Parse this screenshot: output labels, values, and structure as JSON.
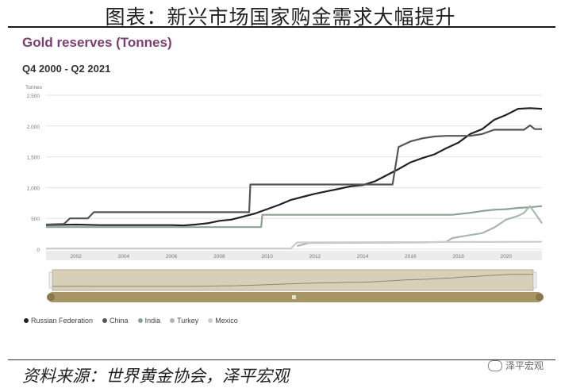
{
  "page_title": "图表：新兴市场国家购金需求大幅提升",
  "source_text": "资料来源：世界黄金协会，泽平宏观",
  "watermark_text": "泽平宏观",
  "chart_data": {
    "type": "line",
    "title": "Gold reserves (Tonnes)",
    "subtitle": "Q4 2000 - Q2 2021",
    "ylabel": "Tonnes",
    "xlabel": "",
    "ylim": [
      0,
      2500
    ],
    "xlim": [
      2000.75,
      2021.5
    ],
    "y_ticks": [
      0,
      500,
      1000,
      1500,
      2000,
      2500
    ],
    "y_tick_labels": [
      "0",
      "500",
      "1,000",
      "1,500",
      "2,000",
      "2,500"
    ],
    "x_ticks": [
      2002,
      2004,
      2006,
      2008,
      2010,
      2012,
      2014,
      2016,
      2018,
      2020
    ],
    "grid": true,
    "legend_position": "bottom-left",
    "series": [
      {
        "name": "Russian Federation",
        "color": "#222222",
        "points": [
          [
            2000.75,
            390
          ],
          [
            2002,
            400
          ],
          [
            2003,
            390
          ],
          [
            2004,
            390
          ],
          [
            2005,
            390
          ],
          [
            2006,
            390
          ],
          [
            2006.5,
            385
          ],
          [
            2007,
            400
          ],
          [
            2007.5,
            420
          ],
          [
            2008,
            460
          ],
          [
            2008.5,
            480
          ],
          [
            2009,
            530
          ],
          [
            2009.5,
            580
          ],
          [
            2010,
            650
          ],
          [
            2010.5,
            720
          ],
          [
            2011,
            800
          ],
          [
            2011.5,
            850
          ],
          [
            2012,
            900
          ],
          [
            2012.5,
            940
          ],
          [
            2013,
            980
          ],
          [
            2013.5,
            1020
          ],
          [
            2014,
            1040
          ],
          [
            2014.5,
            1100
          ],
          [
            2015,
            1200
          ],
          [
            2015.5,
            1300
          ],
          [
            2016,
            1410
          ],
          [
            2016.5,
            1480
          ],
          [
            2017,
            1540
          ],
          [
            2017.5,
            1640
          ],
          [
            2018,
            1730
          ],
          [
            2018.5,
            1870
          ],
          [
            2019,
            1950
          ],
          [
            2019.5,
            2100
          ],
          [
            2020,
            2180
          ],
          [
            2020.5,
            2280
          ],
          [
            2021,
            2290
          ],
          [
            2021.5,
            2280
          ]
        ]
      },
      {
        "name": "China",
        "color": "#555555",
        "points": [
          [
            2000.75,
            400
          ],
          [
            2001.5,
            410
          ],
          [
            2001.75,
            500
          ],
          [
            2002.5,
            500
          ],
          [
            2002.75,
            600
          ],
          [
            2009.25,
            600
          ],
          [
            2009.3,
            1050
          ],
          [
            2015.25,
            1050
          ],
          [
            2015.5,
            1660
          ],
          [
            2016,
            1750
          ],
          [
            2016.5,
            1800
          ],
          [
            2017,
            1830
          ],
          [
            2017.5,
            1840
          ],
          [
            2018.5,
            1840
          ],
          [
            2019,
            1870
          ],
          [
            2019.5,
            1940
          ],
          [
            2020.75,
            1940
          ],
          [
            2021,
            2010
          ],
          [
            2021.2,
            1950
          ],
          [
            2021.5,
            1950
          ]
        ]
      },
      {
        "name": "India",
        "color": "#8aa393",
        "points": [
          [
            2000.75,
            358
          ],
          [
            2009.75,
            358
          ],
          [
            2009.8,
            558
          ],
          [
            2017.75,
            558
          ],
          [
            2018,
            570
          ],
          [
            2018.5,
            590
          ],
          [
            2019,
            620
          ],
          [
            2019.5,
            640
          ],
          [
            2020,
            650
          ],
          [
            2020.5,
            670
          ],
          [
            2021,
            680
          ],
          [
            2021.5,
            700
          ]
        ]
      },
      {
        "name": "Turkey",
        "color": "#a9b8ad",
        "points": [
          [
            2011.25,
            50
          ],
          [
            2011.75,
            100
          ],
          [
            2016.5,
            110
          ],
          [
            2017.5,
            120
          ],
          [
            2017.75,
            180
          ],
          [
            2018.5,
            230
          ],
          [
            2019,
            260
          ],
          [
            2019.5,
            350
          ],
          [
            2020,
            480
          ],
          [
            2020.5,
            540
          ],
          [
            2020.75,
            590
          ],
          [
            2021,
            700
          ],
          [
            2021.25,
            560
          ],
          [
            2021.5,
            420
          ]
        ]
      },
      {
        "name": "Mexico",
        "color": "#cccccc",
        "points": [
          [
            2000.75,
            10
          ],
          [
            2011,
            10
          ],
          [
            2011.25,
            110
          ],
          [
            2021.5,
            120
          ]
        ]
      }
    ]
  }
}
